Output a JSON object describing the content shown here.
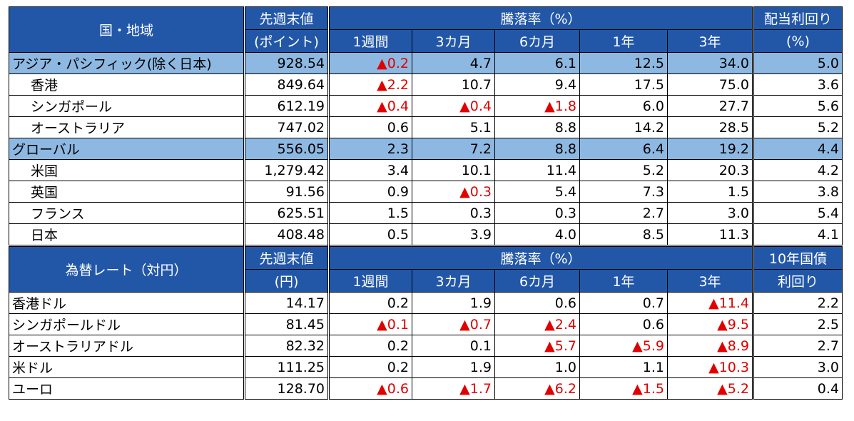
{
  "equity": {
    "header": {
      "name": "国・地域",
      "value_top": "先週末値",
      "value_bottom": "(ポイント)",
      "change": "騰落率（%）",
      "periods": [
        "1週間",
        "3カ月",
        "6カ月",
        "1年",
        "3年"
      ],
      "yield_top": "配当利回り",
      "yield_bottom": "(%)"
    },
    "rows": [
      [
        "アジア・パシフィック(除く日本)",
        "928.54",
        "▲0.2",
        "4.7",
        "6.1",
        "12.5",
        "34.0",
        "5.0"
      ],
      [
        "香港",
        "849.64",
        "▲2.2",
        "10.7",
        "9.4",
        "17.5",
        "75.0",
        "3.6"
      ],
      [
        "シンガポール",
        "612.19",
        "▲0.4",
        "▲0.4",
        "▲1.8",
        "6.0",
        "27.7",
        "5.6"
      ],
      [
        "オーストラリア",
        "747.02",
        "0.6",
        "5.1",
        "8.8",
        "14.2",
        "28.5",
        "5.2"
      ],
      [
        "グローバル",
        "556.05",
        "2.3",
        "7.2",
        "8.8",
        "6.4",
        "19.2",
        "4.4"
      ],
      [
        "米国",
        "1,279.42",
        "3.4",
        "10.1",
        "11.4",
        "5.2",
        "20.3",
        "4.2"
      ],
      [
        "英国",
        "91.56",
        "0.9",
        "▲0.3",
        "5.4",
        "7.3",
        "1.5",
        "3.8"
      ],
      [
        "フランス",
        "625.51",
        "1.5",
        "0.3",
        "0.3",
        "2.7",
        "3.0",
        "5.4"
      ],
      [
        "日本",
        "408.48",
        "0.5",
        "3.9",
        "4.0",
        "8.5",
        "11.3",
        "4.1"
      ]
    ]
  },
  "fx": {
    "header": {
      "name": "為替レート（対円）",
      "value_top": "先週末値",
      "value_bottom": "(円)",
      "change": "騰落率（%）",
      "periods": [
        "1週間",
        "3カ月",
        "6カ月",
        "1年",
        "3年"
      ],
      "yield_top": "10年国債",
      "yield_bottom": "利回り"
    },
    "rows": [
      [
        "香港ドル",
        "14.17",
        "0.2",
        "1.9",
        "0.6",
        "0.7",
        "▲11.4",
        "2.2"
      ],
      [
        "シンガポールドル",
        "81.45",
        "▲0.1",
        "▲0.7",
        "▲2.4",
        "0.6",
        "▲9.5",
        "2.5"
      ],
      [
        "オーストラリアドル",
        "82.32",
        "0.2",
        "0.1",
        "▲5.7",
        "▲5.9",
        "▲8.9",
        "2.7"
      ],
      [
        "米ドル",
        "111.25",
        "0.2",
        "1.9",
        "1.0",
        "1.1",
        "▲10.3",
        "3.0"
      ],
      [
        "ユーロ",
        "128.70",
        "▲0.6",
        "▲1.7",
        "▲6.2",
        "▲1.5",
        "▲5.2",
        "0.4"
      ]
    ]
  }
}
